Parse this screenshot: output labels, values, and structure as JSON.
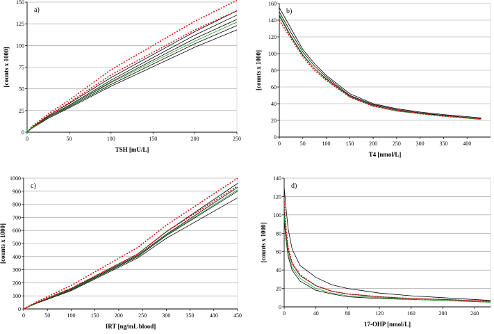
{
  "chart_data": [
    {
      "type": "line",
      "panel": "a)",
      "xlabel": "TSH [mU/L]",
      "ylabel": "[counts x 1000]",
      "xlim": [
        0,
        250
      ],
      "ylim": [
        0,
        150
      ],
      "xticks": [
        0,
        50,
        100,
        150,
        200,
        250
      ],
      "yticks": [
        0,
        25,
        50,
        75,
        100,
        125,
        150
      ],
      "x": [
        0,
        5,
        25,
        50,
        100,
        200,
        250
      ],
      "series": [
        {
          "name": "black-1",
          "color": "#000000",
          "style": "solid",
          "values": [
            0,
            4,
            17,
            30,
            58,
            108,
            130
          ]
        },
        {
          "name": "black-2",
          "color": "#000000",
          "style": "solid",
          "values": [
            0,
            4,
            17,
            29,
            55,
            102,
            123
          ]
        },
        {
          "name": "black-3",
          "color": "#000000",
          "style": "solid",
          "values": [
            0,
            4,
            16,
            28,
            53,
            98,
            118
          ]
        },
        {
          "name": "black-4",
          "color": "#000000",
          "style": "solid",
          "values": [
            0,
            5,
            19,
            33,
            63,
            116,
            140
          ]
        },
        {
          "name": "black-5",
          "color": "#000000",
          "style": "solid",
          "values": [
            0,
            4,
            18,
            31,
            60,
            112,
            135
          ]
        },
        {
          "name": "green-1",
          "color": "#22a022",
          "style": "solid",
          "values": [
            0,
            4,
            17,
            30,
            57,
            105,
            127
          ]
        },
        {
          "name": "red-1",
          "color": "#e01010",
          "style": "dotted",
          "values": [
            0,
            6,
            21,
            37,
            72,
            128,
            152
          ]
        },
        {
          "name": "red-2",
          "color": "#e01010",
          "style": "dotted",
          "values": [
            0,
            5,
            19,
            34,
            66,
            118,
            140
          ]
        }
      ]
    },
    {
      "type": "line",
      "panel": "b)",
      "xlabel": "T4 [nmol/L]",
      "ylabel": "[counts x 1000]",
      "xlim": [
        0,
        450
      ],
      "ylim": [
        0,
        160
      ],
      "xticks": [
        0,
        50,
        100,
        150,
        200,
        250,
        300,
        350,
        400
      ],
      "yticks": [
        0,
        20,
        40,
        60,
        80,
        100,
        120,
        140,
        160
      ],
      "x": [
        0,
        25,
        50,
        75,
        100,
        150,
        200,
        250,
        300,
        350,
        430
      ],
      "series": [
        {
          "name": "black-1",
          "color": "#000000",
          "style": "solid",
          "values": [
            155,
            130,
            105,
            88,
            74,
            52,
            40,
            34,
            30,
            27,
            23
          ]
        },
        {
          "name": "black-2",
          "color": "#000000",
          "style": "solid",
          "values": [
            150,
            125,
            102,
            85,
            72,
            50,
            39,
            33,
            29,
            26,
            22
          ]
        },
        {
          "name": "black-3",
          "color": "#000000",
          "style": "solid",
          "values": [
            145,
            120,
            98,
            82,
            70,
            49,
            38,
            32,
            28,
            26,
            22
          ]
        },
        {
          "name": "green-1",
          "color": "#22a022",
          "style": "solid",
          "values": [
            147,
            121,
            99,
            82,
            69,
            48,
            37,
            31,
            28,
            25,
            21
          ]
        },
        {
          "name": "red-1",
          "color": "#e01010",
          "style": "dotted",
          "values": [
            140,
            118,
            96,
            80,
            68,
            48,
            37,
            32,
            28,
            25,
            22
          ]
        }
      ]
    },
    {
      "type": "line",
      "panel": "c)",
      "xlabel": "IRT [ng/mL blood]",
      "ylabel": "[counts x 1000]",
      "xlim": [
        0,
        450
      ],
      "ylim": [
        0,
        1000
      ],
      "xticks": [
        0,
        50,
        100,
        150,
        200,
        250,
        300,
        350,
        400,
        450
      ],
      "yticks": [
        0,
        100,
        200,
        300,
        400,
        500,
        600,
        700,
        800,
        900,
        1000
      ],
      "x": [
        0,
        25,
        100,
        240,
        300,
        450
      ],
      "series": [
        {
          "name": "black-1",
          "color": "#000000",
          "style": "solid",
          "values": [
            0,
            45,
            155,
            420,
            590,
            960
          ]
        },
        {
          "name": "black-2",
          "color": "#000000",
          "style": "solid",
          "values": [
            0,
            42,
            145,
            400,
            560,
            900
          ]
        },
        {
          "name": "black-3",
          "color": "#000000",
          "style": "solid",
          "values": [
            0,
            40,
            140,
            390,
            540,
            850
          ]
        },
        {
          "name": "black-4",
          "color": "#000000",
          "style": "solid",
          "values": [
            0,
            44,
            150,
            410,
            570,
            930
          ]
        },
        {
          "name": "green-1",
          "color": "#22a022",
          "style": "solid",
          "values": [
            0,
            43,
            148,
            405,
            565,
            910
          ]
        },
        {
          "name": "red-1",
          "color": "#e01010",
          "style": "dotted",
          "values": [
            0,
            50,
            180,
            470,
            640,
            1000
          ]
        },
        {
          "name": "red-2",
          "color": "#e01010",
          "style": "dotted",
          "values": [
            0,
            46,
            158,
            420,
            590,
            940
          ]
        }
      ]
    },
    {
      "type": "line",
      "panel": "d)",
      "xlabel": "17-OHP [nmol/L]",
      "ylabel": "[counts x 1000]",
      "xlim": [
        0,
        260
      ],
      "ylim": [
        0,
        140
      ],
      "xticks": [
        0,
        40,
        80,
        120,
        160,
        200,
        240
      ],
      "yticks": [
        0,
        20,
        40,
        60,
        80,
        100,
        120,
        140
      ],
      "x": [
        0,
        2,
        5,
        10,
        20,
        40,
        60,
        80,
        120,
        160,
        200,
        260
      ],
      "series": [
        {
          "name": "black-1",
          "color": "#000000",
          "style": "solid",
          "values": [
            130,
            110,
            85,
            63,
            45,
            32,
            24,
            20,
            15,
            12,
            10,
            7
          ]
        },
        {
          "name": "black-2",
          "color": "#000000",
          "style": "solid",
          "values": [
            105,
            82,
            62,
            47,
            34,
            23,
            17,
            14,
            11,
            9,
            8,
            6
          ]
        },
        {
          "name": "black-3",
          "color": "#000000",
          "style": "solid",
          "values": [
            95,
            75,
            55,
            40,
            28,
            18,
            14,
            11,
            9,
            8,
            7,
            5
          ]
        },
        {
          "name": "green-1",
          "color": "#22a022",
          "style": "solid",
          "values": [
            100,
            78,
            58,
            43,
            31,
            20,
            15,
            12,
            10,
            8,
            7,
            5
          ]
        },
        {
          "name": "red-1",
          "color": "#e01010",
          "style": "dotted",
          "values": [
            115,
            88,
            65,
            48,
            35,
            23,
            17,
            14,
            11,
            9,
            8,
            6
          ]
        }
      ]
    }
  ]
}
